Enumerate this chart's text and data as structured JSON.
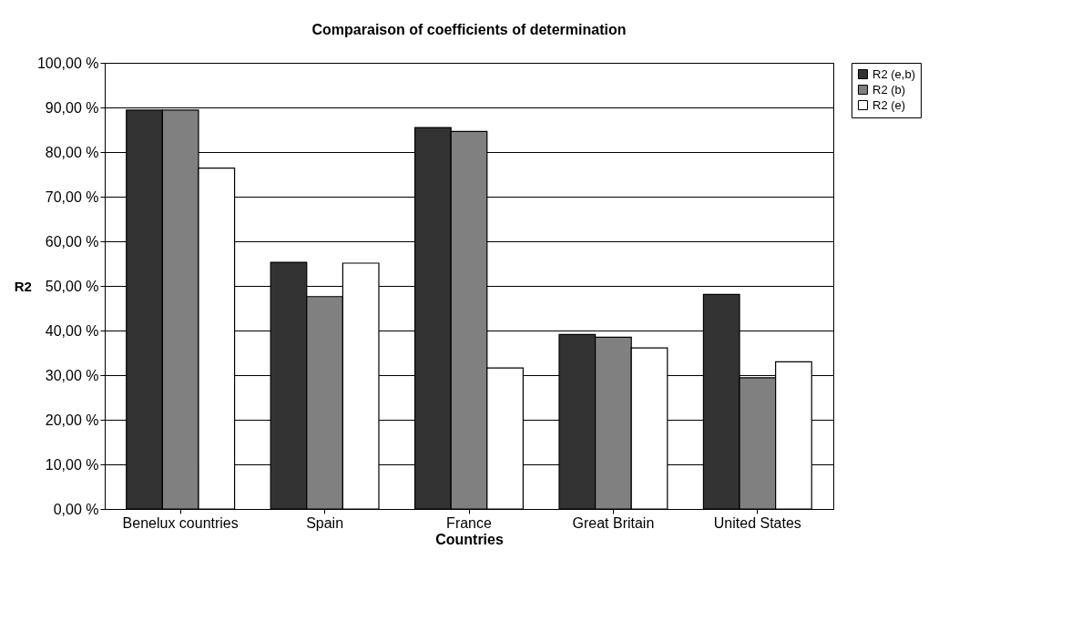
{
  "chart_data": {
    "type": "bar",
    "title": "Comparaison of coefficients of determination",
    "xlabel": "Countries",
    "ylabel": "R2",
    "categories": [
      "Benelux countries",
      "Spain",
      "France",
      "Great Britain",
      "United States"
    ],
    "series": [
      {
        "name": "R2 (e,b)",
        "color": "#333333",
        "values": [
          89.4,
          55.3,
          85.5,
          39.1,
          48.1
        ]
      },
      {
        "name": "R2 (b)",
        "color": "#808080",
        "values": [
          89.4,
          47.6,
          84.6,
          38.5,
          29.4
        ]
      },
      {
        "name": "R2 (e)",
        "color": "#ffffff",
        "values": [
          76.4,
          55.1,
          31.6,
          36.1,
          33.0
        ]
      }
    ],
    "ylim": [
      0,
      100
    ],
    "yticks": [
      {
        "value": 0,
        "label": "0,00 %"
      },
      {
        "value": 10,
        "label": "10,00 %"
      },
      {
        "value": 20,
        "label": "20,00 %"
      },
      {
        "value": 30,
        "label": "30,00 %"
      },
      {
        "value": 40,
        "label": "40,00 %"
      },
      {
        "value": 50,
        "label": "50,00 %"
      },
      {
        "value": 60,
        "label": "60,00 %"
      },
      {
        "value": 70,
        "label": "70,00 %"
      },
      {
        "value": 80,
        "label": "80,00 %"
      },
      {
        "value": 90,
        "label": "90,00 %"
      },
      {
        "value": 100,
        "label": "100,00 %"
      }
    ],
    "grid": "y",
    "legend": "right"
  }
}
